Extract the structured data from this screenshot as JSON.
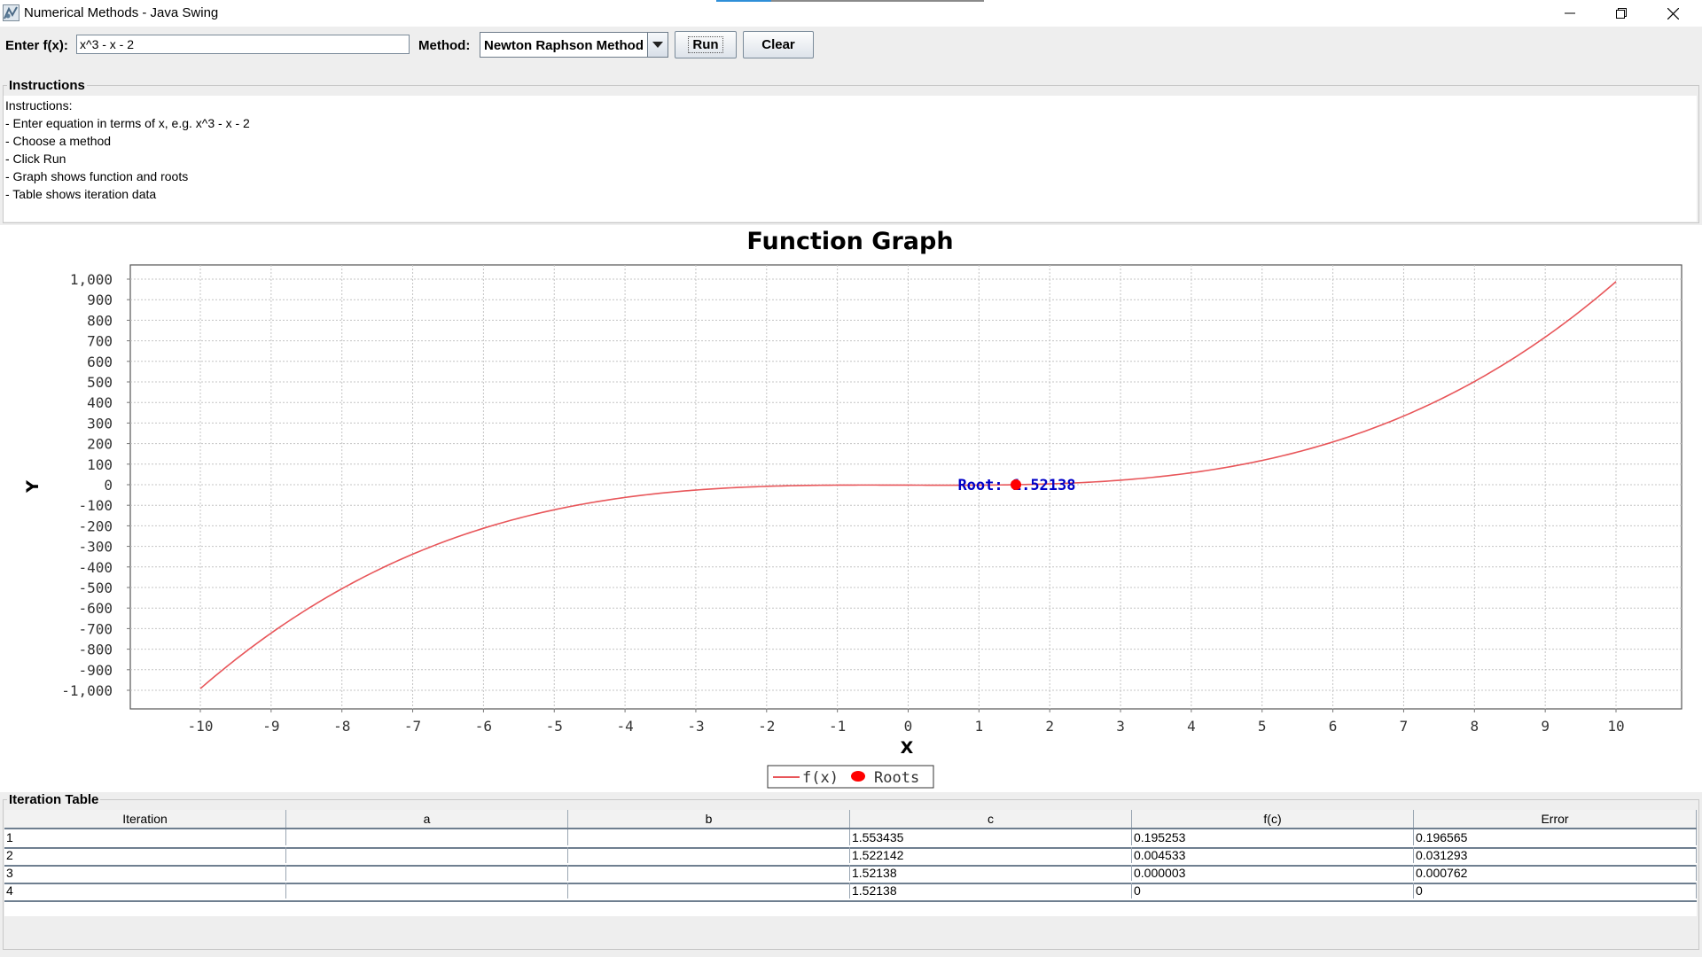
{
  "window": {
    "title": "Numerical Methods - Java Swing",
    "icons": [
      "app-icon",
      "minimize-icon",
      "maximize-icon",
      "close-icon"
    ]
  },
  "toolbar": {
    "fx_label": "Enter f(x):",
    "fx_value": "x^3 - x - 2",
    "method_label": "Method:",
    "method_value": "Newton Raphson Method",
    "run_label": "Run",
    "clear_label": "Clear"
  },
  "instructions": {
    "legend": "Instructions",
    "lines": [
      "Instructions:",
      "- Enter equation in terms of x, e.g. x^3 - x - 2",
      "- Choose a method",
      "- Click Run",
      "- Graph shows function and roots",
      "- Table shows iteration data"
    ]
  },
  "chart_data": {
    "type": "line",
    "title": "Function Graph",
    "xlabel": "X",
    "ylabel": "Y",
    "xlim": [
      -10,
      10
    ],
    "ylim": [
      -1000,
      1000
    ],
    "x_ticks": [
      -10,
      -9,
      -8,
      -7,
      -6,
      -5,
      -4,
      -3,
      -2,
      -1,
      0,
      1,
      2,
      3,
      4,
      5,
      6,
      7,
      8,
      9,
      10
    ],
    "y_ticks": [
      1000,
      900,
      800,
      700,
      600,
      500,
      400,
      300,
      200,
      100,
      0,
      -100,
      -200,
      -300,
      -400,
      -500,
      -600,
      -700,
      -800,
      -900,
      -1000
    ],
    "y_tick_labels": [
      "1,000",
      "900",
      "800",
      "700",
      "600",
      "500",
      "400",
      "300",
      "200",
      "100",
      "0",
      "-100",
      "-200",
      "-300",
      "-400",
      "-500",
      "-600",
      "-700",
      "-800",
      "-900",
      "-1,000"
    ],
    "grid": true,
    "legend_position": "bottom-center",
    "series": [
      {
        "name": "f(x)",
        "color": "#e8565a",
        "x": [
          -10,
          -9,
          -8,
          -7,
          -6,
          -5,
          -4,
          -3,
          -2,
          -1,
          0,
          1,
          2,
          3,
          4,
          5,
          6,
          7,
          8,
          9,
          10
        ],
        "y": [
          -992,
          -722,
          -506,
          -338,
          -212,
          -122,
          -62,
          -26,
          -8,
          -2,
          -2,
          -2,
          4,
          22,
          58,
          118,
          208,
          334,
          502,
          718,
          988
        ]
      },
      {
        "name": "Roots",
        "color": "#ff0000",
        "x": [
          1.52138
        ],
        "y": [
          0
        ]
      }
    ],
    "annotations": [
      {
        "text": "Root: 1.52138",
        "x": 1.52138,
        "y": 0,
        "color": "#0000c8"
      }
    ]
  },
  "table": {
    "legend": "Iteration Table",
    "columns": [
      "Iteration",
      "a",
      "b",
      "c",
      "f(c)",
      "Error"
    ],
    "rows": [
      [
        "1",
        "",
        "",
        "1.553435",
        "0.195253",
        "0.196565"
      ],
      [
        "2",
        "",
        "",
        "1.522142",
        "0.004533",
        "0.031293"
      ],
      [
        "3",
        "",
        "",
        "1.52138",
        "0.000003",
        "0.000762"
      ],
      [
        "4",
        "",
        "",
        "1.52138",
        "0",
        "0"
      ]
    ]
  }
}
